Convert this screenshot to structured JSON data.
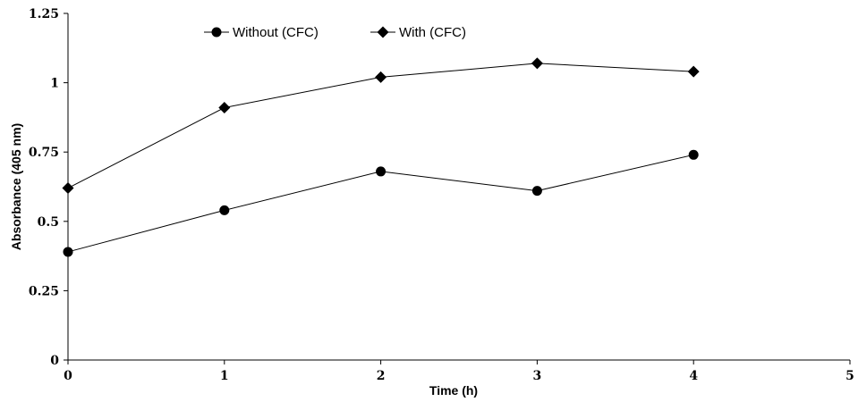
{
  "chart_data": {
    "type": "line",
    "title": "",
    "xlabel": "Time (h)",
    "ylabel": "Absorbance (405 nm)",
    "xlim": [
      0,
      5
    ],
    "ylim": [
      0,
      1.25
    ],
    "x_ticks": [
      "0",
      "1",
      "2",
      "3",
      "4",
      "5"
    ],
    "y_ticks": [
      "0",
      "0.25",
      "0.5",
      "0.75",
      "1",
      "1.25"
    ],
    "grid": false,
    "legend_position": "top-center",
    "x": [
      0,
      1,
      2,
      3,
      4
    ],
    "series": [
      {
        "name": "Without (CFC)",
        "marker": "circle",
        "color": "#000000",
        "values": [
          0.39,
          0.54,
          0.68,
          0.61,
          0.74
        ]
      },
      {
        "name": "With (CFC)",
        "marker": "diamond",
        "color": "#000000",
        "values": [
          0.62,
          0.91,
          1.02,
          1.07,
          1.04
        ]
      }
    ]
  }
}
